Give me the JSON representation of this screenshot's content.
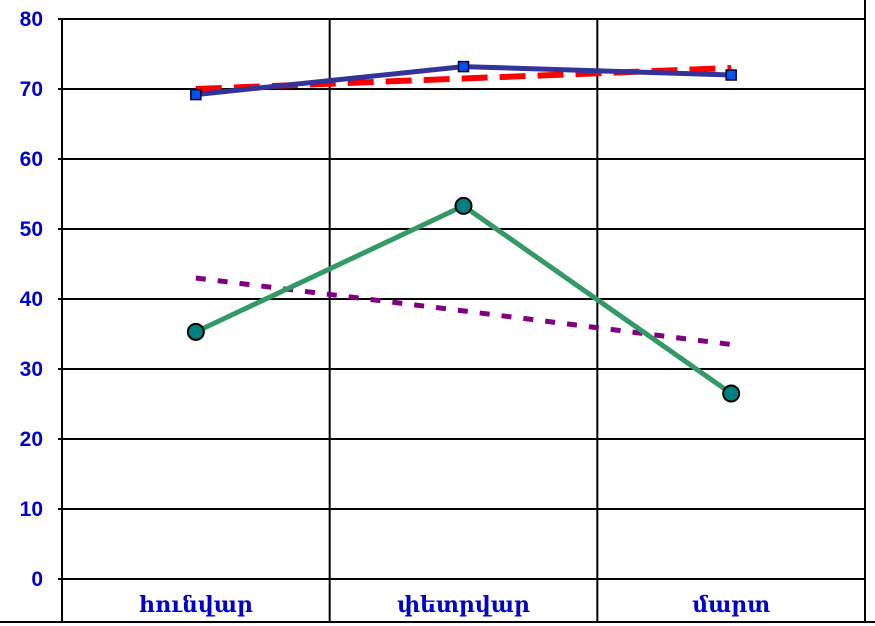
{
  "chart_data": {
    "type": "line",
    "title": "",
    "xlabel": "",
    "ylabel": "",
    "categories": [
      "հունվար",
      "փետրվար",
      "մարտ"
    ],
    "ylim": [
      0,
      80
    ],
    "yticks": [
      "0",
      "10",
      "20",
      "30",
      "40",
      "50",
      "60",
      "70",
      "80"
    ],
    "grid": true,
    "legend": "none",
    "series": [
      {
        "values": [
          69.2,
          73.2,
          72.0
        ],
        "color": "#333399",
        "style": "solid",
        "marker": "square"
      },
      {
        "values": [
          35.3,
          53.3,
          26.5
        ],
        "color": "#339966",
        "style": "solid",
        "marker": "circle"
      }
    ],
    "trendlines": [
      {
        "values": [
          70.0,
          71.5,
          73.0
        ],
        "color": "#ff0000",
        "style": "dashed"
      },
      {
        "values": [
          43.0,
          38.3,
          33.5
        ],
        "color": "#800080",
        "style": "dotted"
      }
    ]
  }
}
